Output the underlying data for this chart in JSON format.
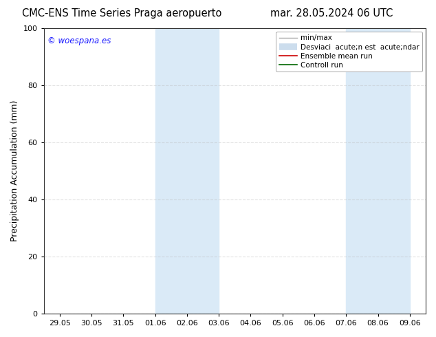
{
  "title_left": "CMC-ENS Time Series Praga aeropuerto",
  "title_right": "mar. 28.05.2024 06 UTC",
  "ylabel": "Precipitation Accumulation (mm)",
  "watermark": "© woespana.es",
  "watermark_color": "#1a1aff",
  "ylim": [
    0,
    100
  ],
  "background_color": "#ffffff",
  "plot_bg_color": "#ffffff",
  "shaded_regions": [
    {
      "x_start": 3.0,
      "x_end": 5.0,
      "color": "#daeaf7"
    },
    {
      "x_start": 9.0,
      "x_end": 11.0,
      "color": "#daeaf7"
    }
  ],
  "xtick_labels": [
    "29.05",
    "30.05",
    "31.05",
    "01.06",
    "02.06",
    "03.06",
    "04.06",
    "05.06",
    "06.06",
    "07.06",
    "08.06",
    "09.06"
  ],
  "xtick_positions": [
    0,
    1,
    2,
    3,
    4,
    5,
    6,
    7,
    8,
    9,
    10,
    11
  ],
  "xlim": [
    -0.5,
    11.5
  ],
  "ytick_positions": [
    0,
    20,
    40,
    60,
    80,
    100
  ],
  "legend_entries": [
    {
      "label": "min/max",
      "color": "#aaaaaa",
      "lw": 1.0
    },
    {
      "label": "Desviaci acute;n est  acute;ndar",
      "color": "#ccdded",
      "lw": 7
    },
    {
      "label": "Ensemble mean run",
      "color": "#cc0000",
      "lw": 1.2
    },
    {
      "label": "Controll run",
      "color": "#006600",
      "lw": 1.2
    }
  ],
  "grid_color": "#bbbbbb",
  "grid_linestyle": "--",
  "grid_alpha": 0.4,
  "title_fontsize": 10.5,
  "tick_fontsize": 8,
  "ylabel_fontsize": 9,
  "legend_fontsize": 7.5
}
